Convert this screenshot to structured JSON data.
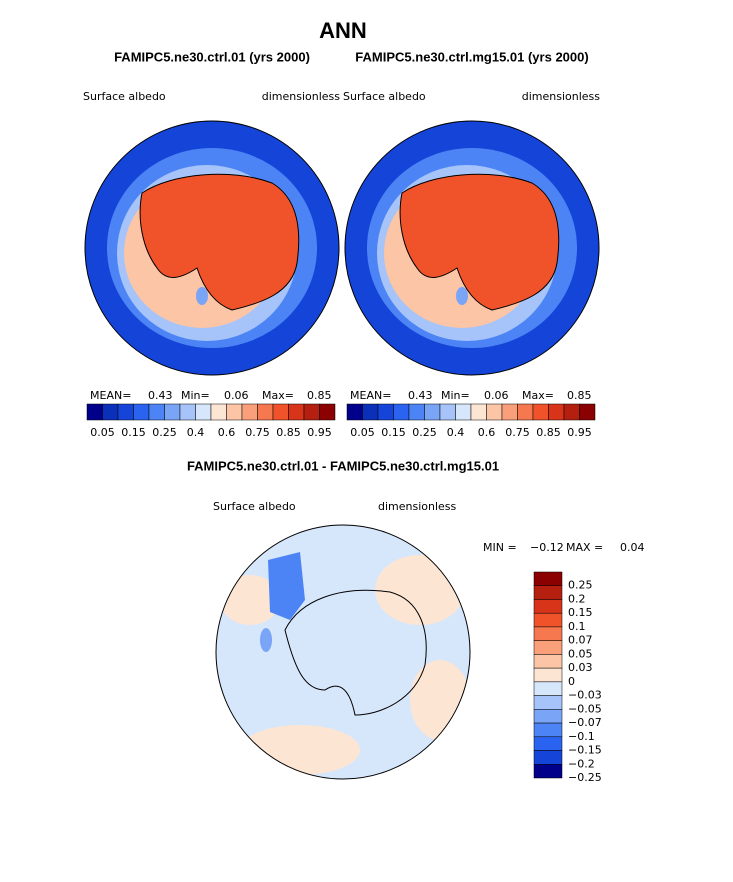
{
  "title": "ANN",
  "panels": [
    {
      "title": "FAMIPC5.ne30.ctrl.01 (yrs 2000)",
      "left_label": "Surface albedo",
      "right_label": "dimensionless",
      "stats": {
        "mean_label": "MEAN=",
        "mean": "0.43",
        "min_label": "Min=",
        "min": "0.06",
        "max_label": "Max=",
        "max": "0.85"
      },
      "colorbar": {
        "colors": [
          "#00008b",
          "#0a2fb8",
          "#1545d8",
          "#2a63f0",
          "#4d84f5",
          "#7aa5f7",
          "#a6c4f9",
          "#d6e6fb",
          "#fde5d3",
          "#fcc5a5",
          "#f9a07b",
          "#f6784f",
          "#f0522a",
          "#d8341a",
          "#b51f10",
          "#8b0000"
        ],
        "labels": [
          "0.05",
          "0.15",
          "0.25",
          "0.4",
          "0.6",
          "0.75",
          "0.85",
          "0.95"
        ]
      }
    },
    {
      "title": "FAMIPC5.ne30.ctrl.mg15.01 (yrs 2000)",
      "left_label": "Surface albedo",
      "right_label": "dimensionless",
      "stats": {
        "mean_label": "MEAN=",
        "mean": "0.43",
        "min_label": "Min=",
        "min": "0.06",
        "max_label": "Max=",
        "max": "0.85"
      },
      "colorbar": {
        "colors": [
          "#00008b",
          "#0a2fb8",
          "#1545d8",
          "#2a63f0",
          "#4d84f5",
          "#7aa5f7",
          "#a6c4f9",
          "#d6e6fb",
          "#fde5d3",
          "#fcc5a5",
          "#f9a07b",
          "#f6784f",
          "#f0522a",
          "#d8341a",
          "#b51f10",
          "#8b0000"
        ],
        "labels": [
          "0.05",
          "0.15",
          "0.25",
          "0.4",
          "0.6",
          "0.75",
          "0.85",
          "0.95"
        ]
      }
    }
  ],
  "diff": {
    "title": "FAMIPC5.ne30.ctrl.01 - FAMIPC5.ne30.ctrl.mg15.01",
    "left_label": "Surface albedo",
    "right_label": "dimensionless",
    "min_label": "MIN =",
    "min": "−0.12",
    "max_label": "MAX =",
    "max": "0.04",
    "colorbar": {
      "colors": [
        "#8b0000",
        "#b51f10",
        "#d8341a",
        "#f0522a",
        "#f6784f",
        "#f9a07b",
        "#fcc5a5",
        "#fde5d3",
        "#d6e6fb",
        "#a6c4f9",
        "#7aa5f7",
        "#4d84f5",
        "#2a63f0",
        "#1545d8",
        "#00008b"
      ],
      "labels": [
        "0.25",
        "0.2",
        "0.15",
        "0.1",
        "0.07",
        "0.05",
        "0.03",
        "0",
        "−0.03",
        "−0.05",
        "−0.07",
        "−0.1",
        "−0.15",
        "−0.2",
        "−0.25"
      ]
    }
  }
}
